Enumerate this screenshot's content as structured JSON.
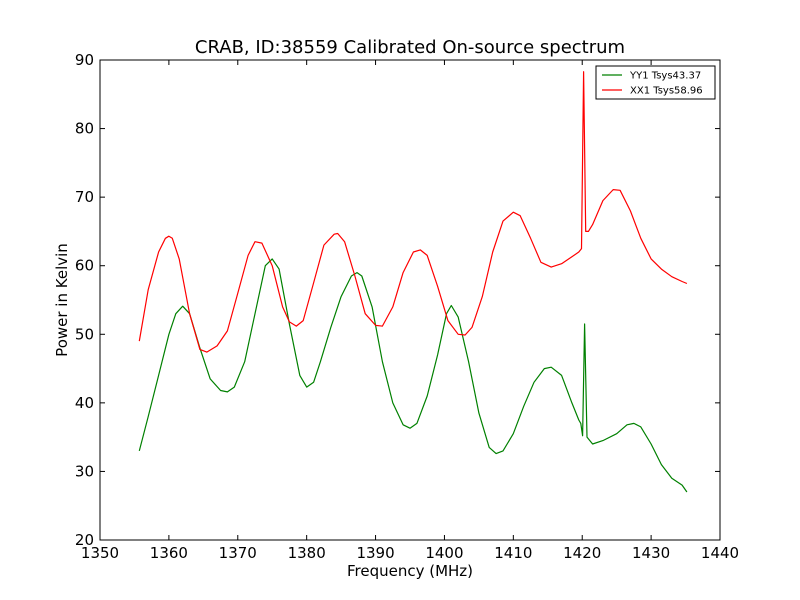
{
  "chart_data": {
    "type": "line",
    "title": "CRAB, ID:38559 Calibrated On-source spectrum",
    "xlabel": "Frequency (MHz)",
    "ylabel": "Power in Kelvin",
    "xlim": [
      1350,
      1440
    ],
    "ylim": [
      20,
      90
    ],
    "xticks": [
      "1350",
      "1360",
      "1370",
      "1380",
      "1390",
      "1400",
      "1410",
      "1420",
      "1430",
      "1440"
    ],
    "yticks": [
      "20",
      "30",
      "40",
      "50",
      "60",
      "70",
      "80",
      "90"
    ],
    "grid": false,
    "legend_position": "top-right",
    "series": [
      {
        "name": "YY1 Tsys43.37",
        "color": "#008000",
        "x": [
          1355.7,
          1357.0,
          1358.5,
          1360.0,
          1361.0,
          1362.0,
          1363.0,
          1364.5,
          1366.0,
          1367.5,
          1368.5,
          1369.5,
          1371.0,
          1372.5,
          1374.0,
          1375.0,
          1376.0,
          1377.5,
          1379.0,
          1380.0,
          1381.0,
          1382.0,
          1383.5,
          1385.0,
          1386.5,
          1387.3,
          1388.0,
          1389.5,
          1391.0,
          1392.5,
          1394.0,
          1395.0,
          1396.0,
          1397.5,
          1399.0,
          1400.3,
          1401.0,
          1402.0,
          1403.5,
          1405.0,
          1406.5,
          1407.5,
          1408.5,
          1410.0,
          1411.5,
          1413.0,
          1414.5,
          1415.5,
          1417.0,
          1418.5,
          1419.5,
          1419.8,
          1420.05,
          1420.35,
          1420.7,
          1421.5,
          1423.0,
          1425.0,
          1426.5,
          1427.5,
          1428.5,
          1430.0,
          1431.5,
          1433.0,
          1434.5,
          1435.2
        ],
        "y": [
          33.0,
          38.0,
          44.0,
          50.0,
          53.0,
          54.1,
          53.0,
          48.0,
          43.5,
          41.8,
          41.6,
          42.3,
          46.0,
          53.0,
          60.0,
          61.0,
          59.5,
          51.5,
          44.0,
          42.3,
          43.0,
          46.0,
          51.0,
          55.5,
          58.5,
          59.0,
          58.5,
          54.0,
          46.0,
          40.0,
          36.8,
          36.3,
          37.0,
          41.0,
          47.0,
          53.0,
          54.2,
          52.5,
          46.0,
          38.5,
          33.5,
          32.6,
          33.0,
          35.5,
          39.5,
          43.0,
          45.0,
          45.2,
          44.0,
          40.0,
          37.5,
          37.0,
          35.2,
          51.5,
          35.0,
          34.0,
          34.5,
          35.5,
          36.8,
          37.0,
          36.5,
          34.0,
          31.0,
          29.0,
          28.0,
          27.0
        ]
      },
      {
        "name": "XX1 Tsys58.96",
        "color": "#ff0000",
        "x": [
          1355.7,
          1357.0,
          1358.5,
          1359.5,
          1360.0,
          1360.5,
          1361.5,
          1363.0,
          1364.5,
          1365.5,
          1367.0,
          1368.5,
          1370.0,
          1371.5,
          1372.5,
          1373.5,
          1375.0,
          1376.5,
          1377.5,
          1378.5,
          1379.5,
          1381.0,
          1382.5,
          1384.0,
          1384.5,
          1385.5,
          1387.0,
          1388.5,
          1390.0,
          1391.0,
          1392.5,
          1394.0,
          1395.5,
          1396.5,
          1397.5,
          1399.0,
          1400.5,
          1402.0,
          1403.0,
          1404.0,
          1405.5,
          1407.0,
          1408.5,
          1410.0,
          1411.0,
          1412.5,
          1414.0,
          1415.5,
          1417.0,
          1418.5,
          1419.5,
          1419.9,
          1420.2,
          1420.5,
          1420.9,
          1421.5,
          1423.0,
          1424.5,
          1425.5,
          1427.0,
          1428.5,
          1430.0,
          1431.5,
          1433.0,
          1434.5,
          1435.2
        ],
        "y": [
          49.0,
          56.5,
          62.0,
          64.0,
          64.3,
          64.0,
          61.0,
          53.0,
          47.8,
          47.4,
          48.3,
          50.5,
          56.0,
          61.5,
          63.5,
          63.3,
          60.0,
          54.0,
          51.8,
          51.2,
          52.0,
          57.5,
          63.0,
          64.6,
          64.7,
          63.5,
          58.5,
          53.0,
          51.3,
          51.2,
          54.0,
          59.0,
          62.0,
          62.3,
          61.5,
          57.0,
          52.0,
          50.0,
          49.9,
          51.0,
          55.5,
          62.0,
          66.5,
          67.8,
          67.3,
          64.0,
          60.5,
          59.8,
          60.3,
          61.3,
          62.0,
          62.5,
          88.3,
          65.0,
          65.0,
          66.0,
          69.5,
          71.1,
          71.0,
          68.0,
          64.0,
          61.0,
          59.5,
          58.4,
          57.7,
          57.4
        ]
      }
    ]
  }
}
